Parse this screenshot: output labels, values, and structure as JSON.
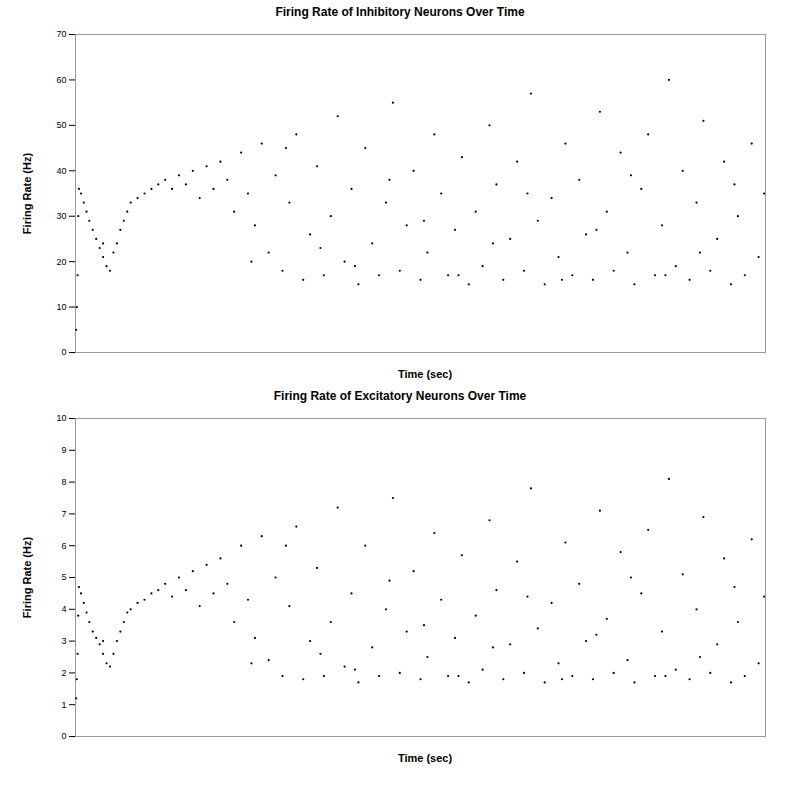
{
  "chart_data": [
    {
      "type": "scatter",
      "title": "Firing Rate of Inhibitory Neurons Over Time",
      "xlabel": "Time (sec)",
      "ylabel": "Firing Rate (Hz)",
      "x": [
        0.1,
        0.2,
        0.3,
        0.4,
        0.5,
        0.8,
        1.2,
        1.6,
        2,
        2.5,
        3,
        3.5,
        4,
        4.5,
        4,
        5,
        5.5,
        6,
        6.5,
        7,
        7.5,
        8,
        9,
        10,
        11,
        12,
        13,
        14,
        15,
        16,
        17,
        18,
        19,
        20,
        21,
        22,
        23,
        24,
        25,
        26,
        27,
        28,
        29,
        30,
        31,
        32,
        33,
        34,
        35,
        36,
        37,
        38,
        39,
        40,
        41,
        42,
        43,
        44,
        45,
        46,
        47,
        48,
        49,
        50,
        51,
        52,
        53,
        54,
        55,
        56,
        57,
        58,
        59,
        60,
        61,
        62,
        63,
        64,
        65,
        66,
        67,
        68,
        69,
        70,
        71,
        72,
        73,
        74,
        75,
        76,
        77,
        78,
        79,
        80,
        81,
        82,
        83,
        84,
        85,
        86,
        87,
        88,
        89,
        90,
        91,
        92,
        93,
        94,
        95,
        96,
        97,
        98,
        99,
        99.8,
        25.5,
        30.5,
        35.5,
        40.5,
        45.5,
        50.5,
        55.5,
        60.5,
        65.5,
        70.5,
        75.5,
        80.5,
        85.5,
        90.5,
        95.5
      ],
      "values": [
        5,
        10,
        17,
        30,
        36,
        35,
        33,
        31,
        29,
        27,
        25,
        23,
        21,
        19,
        24,
        18,
        22,
        24,
        27,
        29,
        31,
        33,
        34,
        35,
        36,
        37,
        38,
        36,
        39,
        37,
        40,
        34,
        41,
        36,
        42,
        38,
        31,
        44,
        35,
        28,
        46,
        22,
        39,
        18,
        33,
        48,
        16,
        26,
        41,
        17,
        30,
        52,
        20,
        36,
        15,
        45,
        24,
        17,
        33,
        55,
        18,
        28,
        40,
        16,
        22,
        48,
        35,
        17,
        27,
        43,
        15,
        31,
        19,
        50,
        37,
        16,
        25,
        42,
        18,
        57,
        29,
        15,
        34,
        21,
        46,
        17,
        38,
        26,
        16,
        53,
        31,
        18,
        44,
        22,
        15,
        36,
        48,
        17,
        28,
        60,
        19,
        40,
        16,
        33,
        51,
        18,
        25,
        42,
        15,
        30,
        17,
        46,
        21,
        35,
        20,
        45,
        23,
        19,
        38,
        29,
        17,
        24,
        35,
        16,
        27,
        39,
        17,
        22,
        37
      ],
      "color": "#000000",
      "marker": "circle",
      "xlim": [
        0,
        100
      ],
      "ylim": [
        0,
        70
      ],
      "yticks": [
        0,
        10,
        20,
        30,
        40,
        50,
        60,
        70
      ],
      "grid": false,
      "tick_labels": "y"
    },
    {
      "type": "scatter",
      "title": "Firing Rate of Excitatory Neurons Over Time",
      "xlabel": "Time (sec)",
      "ylabel": "Firing Rate (Hz)",
      "x": [
        0.1,
        0.2,
        0.3,
        0.4,
        0.5,
        0.8,
        1.2,
        1.6,
        2,
        2.5,
        3,
        3.5,
        4,
        4.5,
        4,
        5,
        5.5,
        6,
        6.5,
        7,
        7.5,
        8,
        9,
        10,
        11,
        12,
        13,
        14,
        15,
        16,
        17,
        18,
        19,
        20,
        21,
        22,
        23,
        24,
        25,
        26,
        27,
        28,
        29,
        30,
        31,
        32,
        33,
        34,
        35,
        36,
        37,
        38,
        39,
        40,
        41,
        42,
        43,
        44,
        45,
        46,
        47,
        48,
        49,
        50,
        51,
        52,
        53,
        54,
        55,
        56,
        57,
        58,
        59,
        60,
        61,
        62,
        63,
        64,
        65,
        66,
        67,
        68,
        69,
        70,
        71,
        72,
        73,
        74,
        75,
        76,
        77,
        78,
        79,
        80,
        81,
        82,
        83,
        84,
        85,
        86,
        87,
        88,
        89,
        90,
        91,
        92,
        93,
        94,
        95,
        96,
        97,
        98,
        99,
        99.8,
        25.5,
        30.5,
        35.5,
        40.5,
        45.5,
        50.5,
        55.5,
        60.5,
        65.5,
        70.5,
        75.5,
        80.5,
        85.5,
        90.5,
        95.5
      ],
      "values": [
        1.2,
        1.8,
        2.6,
        3.8,
        4.7,
        4.5,
        4.2,
        3.9,
        3.6,
        3.3,
        3.1,
        2.9,
        2.6,
        2.3,
        3.0,
        2.2,
        2.6,
        3.0,
        3.3,
        3.6,
        3.9,
        4.0,
        4.2,
        4.3,
        4.5,
        4.6,
        4.8,
        4.4,
        5.0,
        4.6,
        5.2,
        4.1,
        5.4,
        4.5,
        5.6,
        4.8,
        3.6,
        6.0,
        4.3,
        3.1,
        6.3,
        2.4,
        5.0,
        1.9,
        4.1,
        6.6,
        1.8,
        3.0,
        5.3,
        1.9,
        3.6,
        7.2,
        2.2,
        4.5,
        1.7,
        6.0,
        2.8,
        1.9,
        4.0,
        7.5,
        2.0,
        3.3,
        5.2,
        1.8,
        2.5,
        6.4,
        4.3,
        1.9,
        3.1,
        5.7,
        1.7,
        3.8,
        2.1,
        6.8,
        4.6,
        1.8,
        2.9,
        5.5,
        2.0,
        7.8,
        3.4,
        1.7,
        4.2,
        2.3,
        6.1,
        1.9,
        4.8,
        3.0,
        1.8,
        7.1,
        3.7,
        2.0,
        5.8,
        2.4,
        1.7,
        4.5,
        6.5,
        1.9,
        3.3,
        8.1,
        2.1,
        5.1,
        1.8,
        4.0,
        6.9,
        2.0,
        2.9,
        5.6,
        1.7,
        3.6,
        1.9,
        6.2,
        2.3,
        4.4,
        2.3,
        6.0,
        2.6,
        2.1,
        4.9,
        3.5,
        1.9,
        2.8,
        4.4,
        1.8,
        3.2,
        5.0,
        1.9,
        2.5,
        4.7
      ],
      "color": "#000000",
      "marker": "circle",
      "xlim": [
        0,
        100
      ],
      "ylim": [
        0,
        10
      ],
      "yticks": [
        0,
        1,
        2,
        3,
        4,
        5,
        6,
        7,
        8,
        9,
        10
      ],
      "grid": false,
      "tick_labels": "y"
    }
  ]
}
